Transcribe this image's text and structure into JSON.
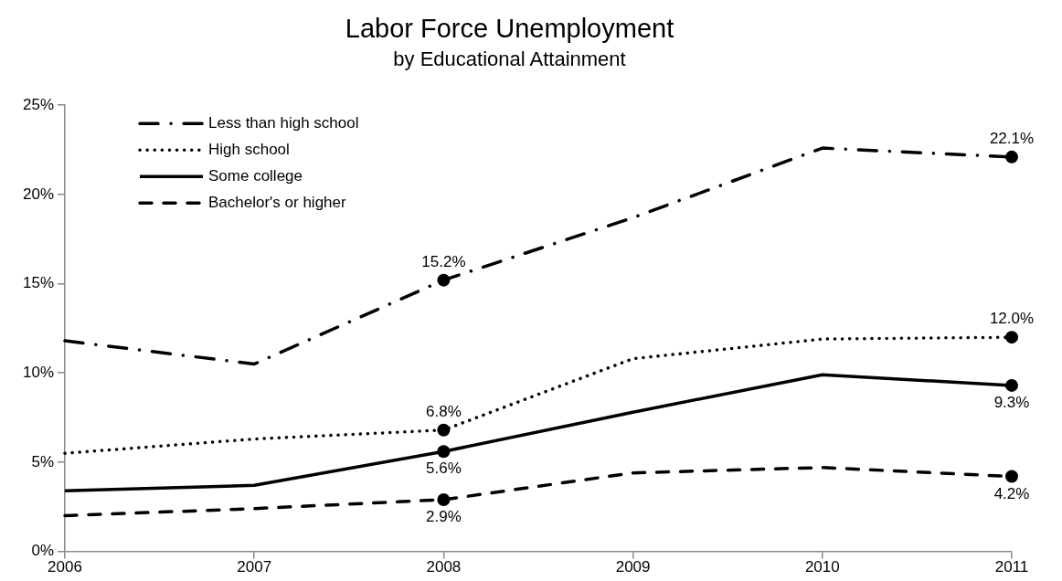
{
  "chart_data": {
    "type": "line",
    "title": "Labor Force Unemployment",
    "subtitle": "by Educational Attainment",
    "x": [
      2006,
      2007,
      2008,
      2009,
      2010,
      2011
    ],
    "xlim": [
      2006,
      2011
    ],
    "xticks": [
      2006,
      2007,
      2008,
      2009,
      2010,
      2011
    ],
    "ylim": [
      0,
      25
    ],
    "yticks": [
      {
        "value": 0,
        "label": "0%"
      },
      {
        "value": 5,
        "label": "5%"
      },
      {
        "value": 10,
        "label": "10%"
      },
      {
        "value": 15,
        "label": "15%"
      },
      {
        "value": 20,
        "label": "20%"
      },
      {
        "value": 25,
        "label": "25%"
      }
    ],
    "legend": "top left",
    "series": [
      {
        "name": "Less than high school",
        "color": "#000000",
        "line_style": "dashdot",
        "values": [
          11.8,
          10.5,
          15.2,
          18.7,
          22.6,
          22.1
        ],
        "value_labels": [
          null,
          null,
          "15.2%",
          null,
          null,
          "22.1%"
        ]
      },
      {
        "name": "High school",
        "color": "#000000",
        "line_style": "dotted",
        "values": [
          5.5,
          6.3,
          6.8,
          10.8,
          11.9,
          12.0
        ],
        "value_labels": [
          null,
          null,
          "6.8%",
          null,
          null,
          "12.0%"
        ]
      },
      {
        "name": "Some college",
        "color": "#000000",
        "line_style": "solid",
        "values": [
          3.4,
          3.7,
          5.6,
          7.8,
          9.9,
          9.3
        ],
        "value_labels": [
          null,
          null,
          "5.6%",
          null,
          null,
          "9.3%"
        ]
      },
      {
        "name": "Bachelor's or higher",
        "color": "#000000",
        "line_style": "dashed",
        "values": [
          2.0,
          2.4,
          2.9,
          4.4,
          4.7,
          4.2
        ],
        "value_labels": [
          null,
          null,
          "2.9%",
          null,
          null,
          "4.2%"
        ]
      }
    ]
  }
}
